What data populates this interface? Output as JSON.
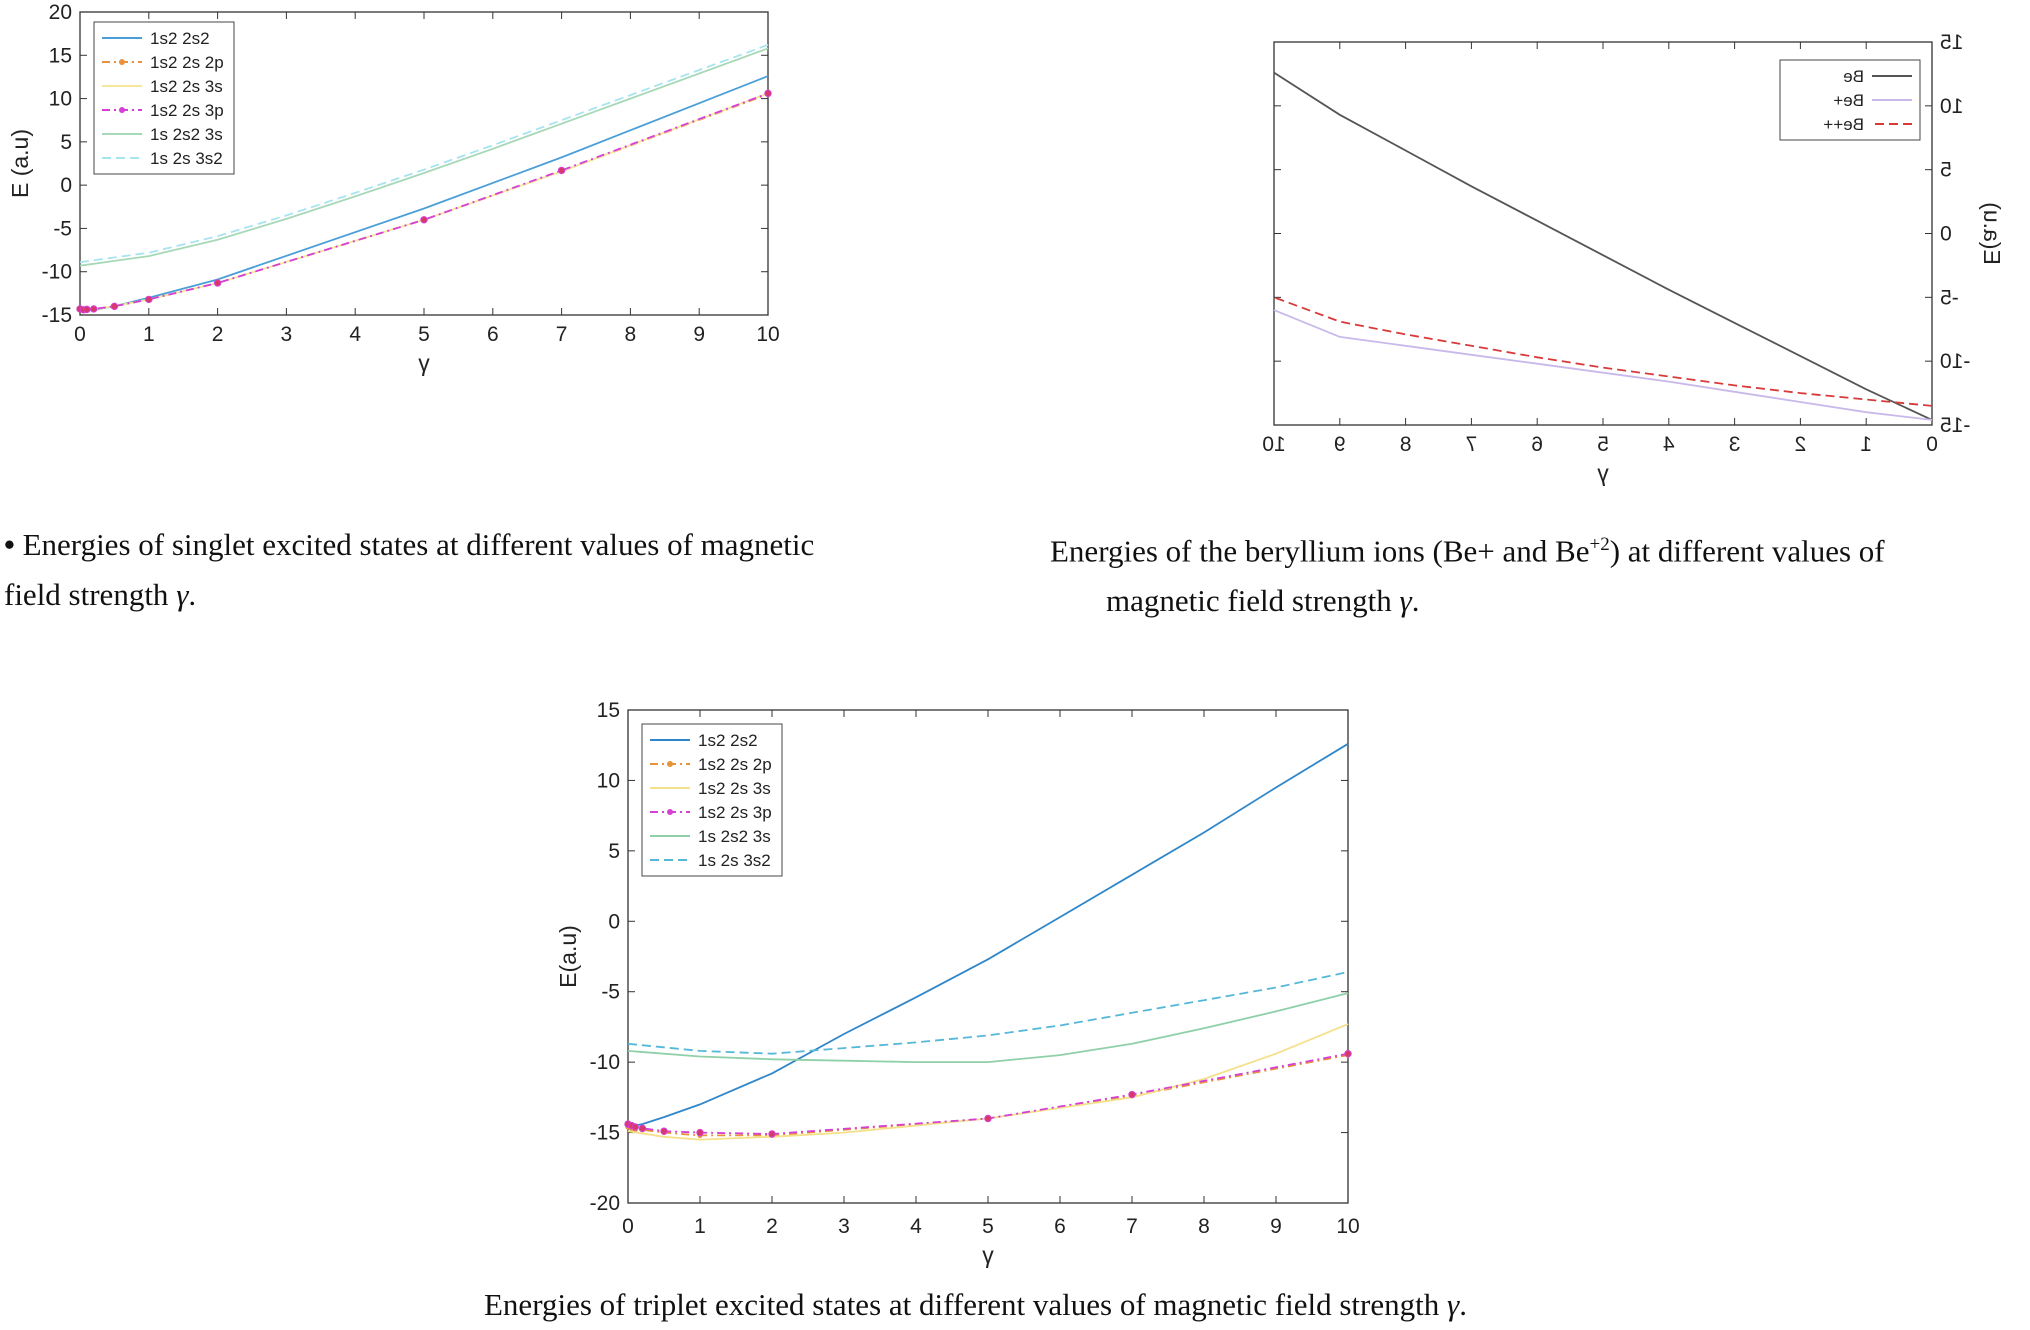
{
  "captions": {
    "singlet_bullet": "•",
    "singlet_line1": "Energies of singlet excited states at different values of magnetic",
    "singlet_line2": "field strength",
    "ions_line1_pre": "Energies of the beryllium ions (Be+ and Be",
    "ions_superscript": "+2",
    "ions_line1_post": ") at different values of",
    "ions_line2": "magnetic field strength",
    "triplet_line": "Energies of triplet excited states at different values of magnetic field strength",
    "gamma_symbol": "γ",
    "period": "."
  },
  "chart_data": [
    {
      "id": "singlet",
      "type": "line",
      "title": "",
      "xlabel": "γ",
      "ylabel": "E (a.u)",
      "xlim": [
        0,
        10
      ],
      "ylim": [
        -15,
        20
      ],
      "xticks": [
        0,
        1,
        2,
        3,
        4,
        5,
        6,
        7,
        8,
        9,
        10
      ],
      "yticks": [
        -15,
        -10,
        -5,
        0,
        5,
        10,
        15,
        20
      ],
      "legend_position": "top-left",
      "series": [
        {
          "name": "1s2 2s2",
          "color": "#4a9fd8",
          "dash": "solid",
          "marker": "none",
          "x": [
            0,
            0.05,
            0.1,
            0.2,
            0.5,
            1,
            2,
            5,
            7,
            10
          ],
          "y": [
            -14.6,
            -14.55,
            -14.5,
            -14.4,
            -14.0,
            -13.0,
            -10.9,
            -2.7,
            3.2,
            12.6
          ]
        },
        {
          "name": "1s2 2s 2p",
          "color": "#e8923a",
          "dash": "dashdot",
          "marker": "star",
          "x": [
            0,
            0.05,
            0.1,
            0.2,
            0.5,
            1,
            2,
            5,
            7,
            10
          ],
          "y": [
            -14.4,
            -14.45,
            -14.4,
            -14.35,
            -14.0,
            -13.2,
            -11.3,
            -4.0,
            1.6,
            10.5
          ]
        },
        {
          "name": "1s2 2s 3s",
          "color": "#f5e69a",
          "dash": "solid",
          "marker": "none",
          "x": [
            0,
            0.05,
            0.1,
            0.2,
            0.5,
            1,
            2,
            5,
            7,
            10
          ],
          "y": [
            -14.5,
            -14.5,
            -14.45,
            -14.35,
            -14.0,
            -13.2,
            -11.3,
            -4.0,
            1.6,
            10.6
          ]
        },
        {
          "name": "1s2 2s 3p",
          "color": "#d63fd6",
          "dash": "dashdot",
          "marker": "dot",
          "x": [
            0,
            0.05,
            0.1,
            0.2,
            0.5,
            1,
            2,
            5,
            7,
            10
          ],
          "y": [
            -14.3,
            -14.4,
            -14.35,
            -14.3,
            -14.0,
            -13.2,
            -11.3,
            -4.0,
            1.7,
            10.6
          ]
        },
        {
          "name": "1s 2s2 3s",
          "color": "#a7d8b8",
          "dash": "solid",
          "marker": "none",
          "x": [
            0,
            1,
            2,
            3,
            4,
            5,
            6,
            7,
            8,
            9,
            10
          ],
          "y": [
            -9.3,
            -8.2,
            -6.3,
            -3.9,
            -1.3,
            1.4,
            4.2,
            7.1,
            10.0,
            12.9,
            15.8
          ]
        },
        {
          "name": "1s 2s 3s2",
          "color": "#a8e4ee",
          "dash": "dash",
          "marker": "none",
          "x": [
            0,
            1,
            2,
            3,
            4,
            5,
            6,
            7,
            8,
            9,
            10
          ],
          "y": [
            -8.9,
            -7.8,
            -5.9,
            -3.5,
            -0.9,
            1.8,
            4.6,
            7.5,
            10.4,
            13.3,
            16.2
          ]
        }
      ]
    },
    {
      "id": "ions",
      "type": "line",
      "mirrored": true,
      "title": "",
      "xlabel": "γ",
      "ylabel": "E(a.u)",
      "xlim": [
        0,
        10
      ],
      "ylim": [
        -15,
        15
      ],
      "xticks": [
        0,
        1,
        2,
        3,
        4,
        5,
        6,
        7,
        8,
        9,
        10
      ],
      "yticks": [
        -15,
        -10,
        -5,
        0,
        5,
        10,
        15
      ],
      "legend_position": "top-left",
      "series": [
        {
          "name": "Be",
          "color": "#555555",
          "dash": "solid",
          "marker": "none",
          "x": [
            0,
            1,
            2,
            3,
            4,
            5,
            6,
            7,
            8,
            9,
            10
          ],
          "y": [
            -14.6,
            -12.2,
            -9.6,
            -7.0,
            -4.4,
            -1.7,
            1.0,
            3.7,
            6.5,
            9.3,
            12.6
          ]
        },
        {
          "name": "Be+",
          "color": "#c9b8ea",
          "dash": "solid",
          "marker": "none",
          "x": [
            0,
            1,
            2,
            3,
            4,
            5,
            6,
            7,
            8,
            9,
            10
          ],
          "y": [
            -14.6,
            -14.0,
            -13.2,
            -12.4,
            -11.6,
            -10.9,
            -10.2,
            -9.5,
            -8.8,
            -8.1,
            -6.0
          ]
        },
        {
          "name": "Be++",
          "color": "#d83a3a",
          "dash": "dash",
          "marker": "none",
          "x": [
            0,
            1,
            2,
            3,
            4,
            5,
            6,
            7,
            8,
            9,
            10
          ],
          "y": [
            -13.5,
            -13.0,
            -12.5,
            -11.9,
            -11.2,
            -10.5,
            -9.7,
            -8.8,
            -7.9,
            -6.9,
            -5.0
          ]
        }
      ]
    },
    {
      "id": "triplet",
      "type": "line",
      "title": "",
      "xlabel": "γ",
      "ylabel": "E(a.u)",
      "xlim": [
        0,
        10
      ],
      "ylim": [
        -20,
        15
      ],
      "xticks": [
        0,
        1,
        2,
        3,
        4,
        5,
        6,
        7,
        8,
        9,
        10
      ],
      "yticks": [
        -20,
        -15,
        -10,
        -5,
        0,
        5,
        10,
        15
      ],
      "legend_position": "top-left",
      "series": [
        {
          "name": "1s2 2s2",
          "color": "#2f86c9",
          "dash": "solid",
          "marker": "none",
          "x": [
            0,
            0.05,
            0.1,
            0.2,
            0.5,
            1,
            2,
            3,
            4,
            5,
            6,
            7,
            8,
            9,
            10
          ],
          "y": [
            -14.6,
            -14.55,
            -14.5,
            -14.4,
            -13.9,
            -13.0,
            -10.8,
            -8.0,
            -5.4,
            -2.7,
            0.3,
            3.3,
            6.3,
            9.5,
            12.6
          ]
        },
        {
          "name": "1s2 2s 2p",
          "color": "#e8923a",
          "dash": "dashdot",
          "marker": "star",
          "x": [
            0,
            0.05,
            0.1,
            0.2,
            0.5,
            1,
            2,
            5,
            7,
            10
          ],
          "y": [
            -14.6,
            -14.7,
            -14.8,
            -14.8,
            -15.0,
            -15.2,
            -15.2,
            -14.0,
            -12.4,
            -9.5
          ]
        },
        {
          "name": "1s2 2s 3s",
          "color": "#f5e08a",
          "dash": "solid",
          "marker": "none",
          "x": [
            0,
            0.5,
            1,
            2,
            3,
            5,
            7,
            8,
            9,
            10
          ],
          "y": [
            -14.9,
            -15.3,
            -15.5,
            -15.3,
            -15.0,
            -14.0,
            -12.5,
            -11.2,
            -9.4,
            -7.3
          ]
        },
        {
          "name": "1s2 2s 3p",
          "color": "#d63fd6",
          "dash": "dashdot",
          "marker": "dot",
          "x": [
            0,
            0.05,
            0.1,
            0.2,
            0.5,
            1,
            2,
            5,
            7,
            10
          ],
          "y": [
            -14.4,
            -14.5,
            -14.6,
            -14.7,
            -14.9,
            -15.0,
            -15.1,
            -14.0,
            -12.3,
            -9.4
          ]
        },
        {
          "name": "1s 2s2 3s",
          "color": "#8fd0a8",
          "dash": "solid",
          "marker": "none",
          "x": [
            0,
            1,
            2,
            3,
            4,
            5,
            6,
            7,
            8,
            9,
            10
          ],
          "y": [
            -9.2,
            -9.6,
            -9.8,
            -9.9,
            -10.0,
            -10.0,
            -9.5,
            -8.7,
            -7.6,
            -6.4,
            -5.1
          ]
        },
        {
          "name": "1s 2s 3s2",
          "color": "#55b8d8",
          "dash": "dash",
          "marker": "none",
          "x": [
            0,
            1,
            2,
            3,
            4,
            5,
            6,
            7,
            8,
            9,
            10
          ],
          "y": [
            -8.7,
            -9.2,
            -9.4,
            -9.0,
            -8.6,
            -8.1,
            -7.4,
            -6.5,
            -5.6,
            -4.7,
            -3.6
          ]
        }
      ]
    }
  ]
}
